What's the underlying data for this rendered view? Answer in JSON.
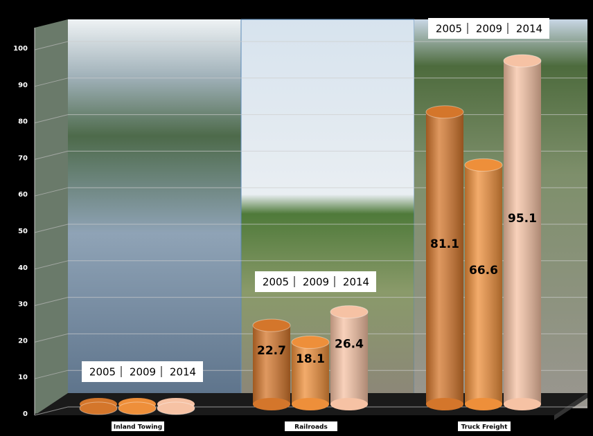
{
  "chart_data": {
    "type": "bar",
    "categories": [
      "Inland Towing",
      "Railroads",
      "Truck Freight"
    ],
    "series": [
      {
        "name": "2005",
        "color": "#d4762b",
        "values": [
          0,
          22.7,
          81.1
        ]
      },
      {
        "name": "2009",
        "color": "#ee8f3a",
        "values": [
          0,
          18.1,
          66.6
        ]
      },
      {
        "name": "2014",
        "color": "#f6c2a4",
        "values": [
          0,
          26.4,
          95.1
        ]
      }
    ],
    "ylim": [
      0,
      100
    ],
    "yticks": [
      0,
      10,
      20,
      30,
      40,
      50,
      60,
      70,
      80,
      90,
      100
    ],
    "grid": true
  }
}
